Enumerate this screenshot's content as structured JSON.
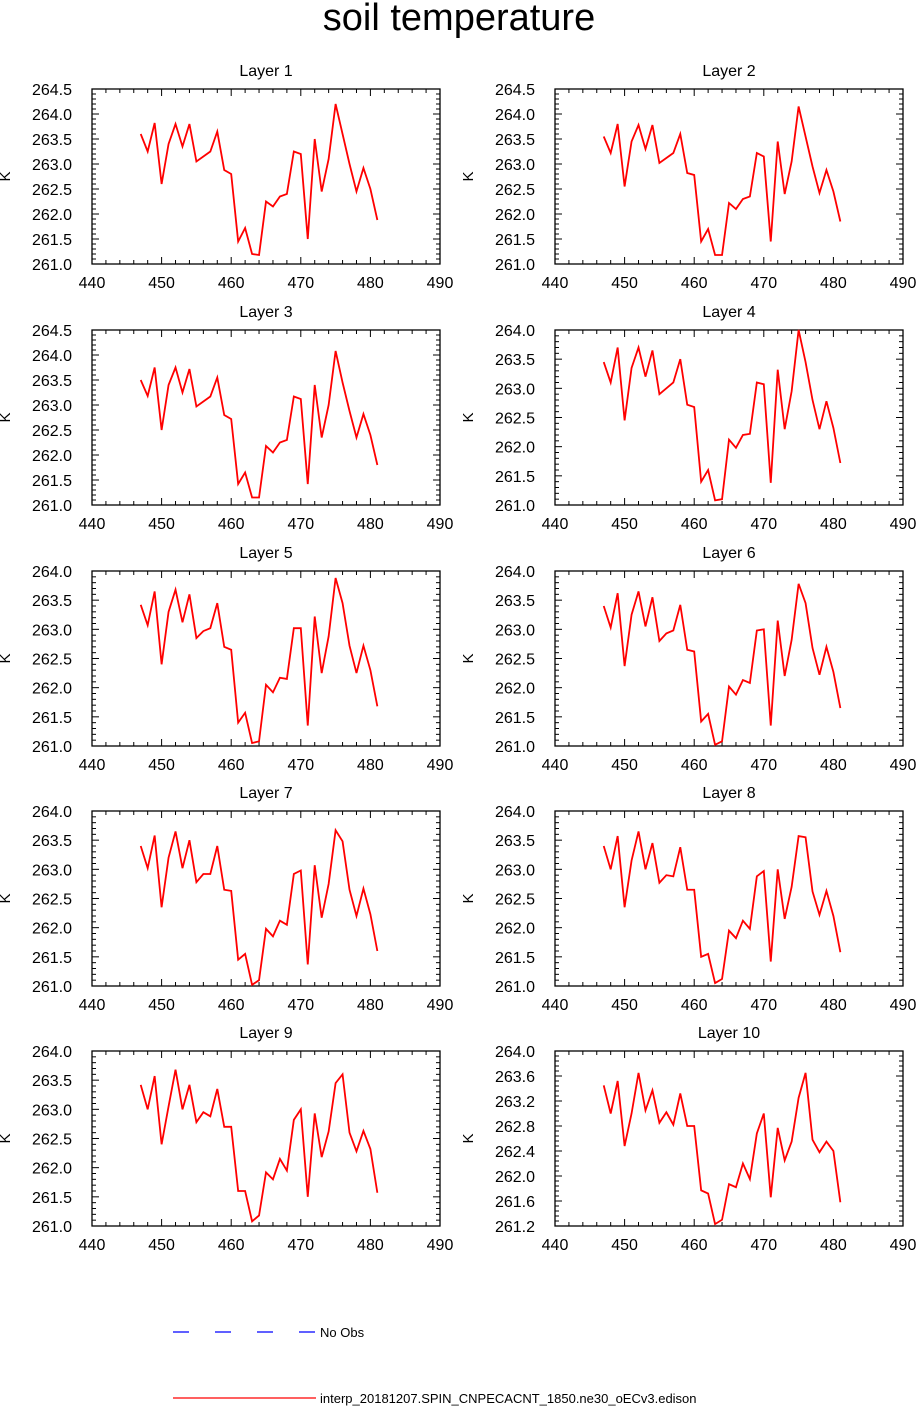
{
  "chart_data": {
    "type": "line",
    "title": "soil temperature",
    "xlim": [
      440,
      490
    ],
    "x_ticks": [
      440,
      450,
      460,
      470,
      480,
      490
    ],
    "x": [
      447,
      448,
      449,
      450,
      451,
      452,
      453,
      454,
      455,
      456,
      457,
      458,
      459,
      460,
      461,
      462,
      463,
      464,
      465,
      466,
      467,
      468,
      469,
      470,
      471,
      472,
      473,
      474,
      475,
      476,
      477,
      478,
      479,
      480,
      481
    ],
    "panels": [
      {
        "title": "Layer 1",
        "ylabel": "K",
        "ylim": [
          261.0,
          264.5
        ],
        "y_ticks": [
          "261.0",
          "261.5",
          "262.0",
          "262.5",
          "263.0",
          "263.5",
          "264.0",
          "264.5"
        ],
        "values": [
          263.6,
          263.25,
          263.82,
          262.6,
          263.4,
          263.8,
          263.35,
          263.8,
          263.05,
          263.15,
          263.25,
          263.65,
          262.88,
          262.8,
          261.45,
          261.72,
          261.2,
          261.18,
          262.25,
          262.15,
          262.35,
          262.4,
          263.25,
          263.2,
          261.5,
          263.5,
          262.45,
          263.1,
          264.2,
          263.6,
          263.0,
          262.45,
          262.92,
          262.5,
          261.88
        ]
      },
      {
        "title": "Layer 2",
        "ylabel": "K",
        "ylim": [
          261.0,
          264.5
        ],
        "y_ticks": [
          "261.0",
          "261.5",
          "262.0",
          "262.5",
          "263.0",
          "263.5",
          "264.0",
          "264.5"
        ],
        "values": [
          263.55,
          263.22,
          263.8,
          262.55,
          263.45,
          263.78,
          263.3,
          263.78,
          263.02,
          263.12,
          263.22,
          263.6,
          262.82,
          262.78,
          261.45,
          261.7,
          261.18,
          261.18,
          262.22,
          262.1,
          262.3,
          262.35,
          263.22,
          263.15,
          261.45,
          263.45,
          262.4,
          263.05,
          264.15,
          263.55,
          262.95,
          262.42,
          262.88,
          262.45,
          261.85
        ]
      },
      {
        "title": "Layer 3",
        "ylabel": "K",
        "ylim": [
          261.0,
          264.5
        ],
        "y_ticks": [
          "261.0",
          "261.5",
          "262.0",
          "262.5",
          "263.0",
          "263.5",
          "264.0",
          "264.5"
        ],
        "values": [
          263.5,
          263.18,
          263.75,
          262.5,
          263.4,
          263.75,
          263.25,
          263.72,
          262.97,
          263.07,
          263.17,
          263.55,
          262.8,
          262.72,
          261.42,
          261.65,
          261.15,
          261.15,
          262.18,
          262.05,
          262.25,
          262.3,
          263.17,
          263.12,
          261.42,
          263.4,
          262.35,
          263.0,
          264.08,
          263.45,
          262.88,
          262.35,
          262.82,
          262.4,
          261.8
        ]
      },
      {
        "title": "Layer 4",
        "ylabel": "K",
        "ylim": [
          261.0,
          264.0
        ],
        "y_ticks": [
          "261.0",
          "261.5",
          "262.0",
          "262.5",
          "263.0",
          "263.5",
          "264.0"
        ],
        "values": [
          263.45,
          263.1,
          263.7,
          262.45,
          263.35,
          263.7,
          263.2,
          263.65,
          262.9,
          263.0,
          263.1,
          263.5,
          262.72,
          262.68,
          261.4,
          261.6,
          261.08,
          261.1,
          262.12,
          261.98,
          262.2,
          262.22,
          263.1,
          263.07,
          261.38,
          263.32,
          262.3,
          262.95,
          264.0,
          263.45,
          262.8,
          262.3,
          262.78,
          262.32,
          261.72
        ]
      },
      {
        "title": "Layer 5",
        "ylabel": "K",
        "ylim": [
          261.0,
          264.0
        ],
        "y_ticks": [
          "261.0",
          "261.5",
          "262.0",
          "262.5",
          "263.0",
          "263.5",
          "264.0"
        ],
        "values": [
          263.42,
          263.07,
          263.65,
          262.4,
          263.3,
          263.68,
          263.12,
          263.6,
          262.85,
          262.97,
          263.02,
          263.45,
          262.7,
          262.65,
          261.4,
          261.57,
          261.05,
          261.08,
          262.05,
          261.92,
          262.17,
          262.15,
          263.02,
          263.02,
          261.35,
          263.22,
          262.25,
          262.88,
          263.88,
          263.45,
          262.72,
          262.25,
          262.72,
          262.3,
          261.68
        ]
      },
      {
        "title": "Layer 6",
        "ylabel": "K",
        "ylim": [
          261.0,
          264.0
        ],
        "y_ticks": [
          "261.0",
          "261.5",
          "262.0",
          "262.5",
          "263.0",
          "263.5",
          "264.0"
        ],
        "values": [
          263.4,
          263.03,
          263.62,
          262.37,
          263.25,
          263.65,
          263.05,
          263.55,
          262.8,
          262.93,
          262.98,
          263.42,
          262.65,
          262.62,
          261.42,
          261.55,
          261.02,
          261.08,
          262.02,
          261.88,
          262.13,
          262.08,
          262.98,
          263.0,
          261.35,
          263.15,
          262.2,
          262.82,
          263.78,
          263.45,
          262.68,
          262.22,
          262.7,
          262.27,
          261.65
        ]
      },
      {
        "title": "Layer 7",
        "ylabel": "K",
        "ylim": [
          261.0,
          264.0
        ],
        "y_ticks": [
          "261.0",
          "261.5",
          "262.0",
          "262.5",
          "263.0",
          "263.5",
          "264.0"
        ],
        "values": [
          263.4,
          263.02,
          263.58,
          262.35,
          263.2,
          263.65,
          263.02,
          263.5,
          262.78,
          262.92,
          262.92,
          263.4,
          262.65,
          262.63,
          261.45,
          261.55,
          261.02,
          261.1,
          261.98,
          261.85,
          262.12,
          262.05,
          262.92,
          262.98,
          261.37,
          263.07,
          262.17,
          262.75,
          263.67,
          263.48,
          262.65,
          262.2,
          262.67,
          262.23,
          261.6
        ]
      },
      {
        "title": "Layer 8",
        "ylabel": "K",
        "ylim": [
          261.0,
          264.0
        ],
        "y_ticks": [
          "261.0",
          "261.5",
          "262.0",
          "262.5",
          "263.0",
          "263.5",
          "264.0"
        ],
        "values": [
          263.4,
          263.0,
          263.57,
          262.35,
          263.15,
          263.65,
          263.0,
          263.45,
          262.77,
          262.9,
          262.88,
          263.38,
          262.65,
          262.65,
          261.5,
          261.55,
          261.05,
          261.12,
          261.95,
          261.82,
          262.12,
          261.98,
          262.88,
          262.97,
          261.42,
          263.0,
          262.15,
          262.7,
          263.57,
          263.55,
          262.62,
          262.22,
          262.63,
          262.2,
          261.58
        ]
      },
      {
        "title": "Layer 9",
        "ylabel": "K",
        "ylim": [
          261.0,
          264.0
        ],
        "y_ticks": [
          "261.0",
          "261.5",
          "262.0",
          "262.5",
          "263.0",
          "263.5",
          "264.0"
        ],
        "values": [
          263.42,
          263.0,
          263.57,
          262.4,
          263.05,
          263.68,
          263.0,
          263.42,
          262.78,
          262.95,
          262.88,
          263.35,
          262.7,
          262.7,
          261.6,
          261.6,
          261.08,
          261.18,
          261.92,
          261.8,
          262.15,
          261.95,
          262.82,
          263.0,
          261.5,
          262.93,
          262.18,
          262.62,
          263.45,
          263.6,
          262.6,
          262.28,
          262.63,
          262.32,
          261.57
        ]
      },
      {
        "title": "Layer 10",
        "ylabel": "K",
        "ylim": [
          261.2,
          264.0
        ],
        "y_ticks": [
          "261.2",
          "261.6",
          "262.0",
          "262.4",
          "262.8",
          "263.2",
          "263.6",
          "264.0"
        ],
        "values": [
          263.45,
          263.0,
          263.52,
          262.48,
          263.0,
          263.65,
          263.05,
          263.37,
          262.85,
          263.02,
          262.82,
          263.32,
          262.8,
          262.8,
          261.77,
          261.72,
          261.23,
          261.3,
          261.87,
          261.82,
          262.2,
          261.95,
          262.68,
          263.0,
          261.66,
          262.77,
          262.25,
          262.55,
          263.25,
          263.65,
          262.58,
          262.38,
          262.55,
          262.4,
          261.58
        ]
      }
    ],
    "legend": [
      {
        "label": "No Obs",
        "color": "#0000ff",
        "style": "dashed"
      },
      {
        "label": "interp_20181207.SPIN_CNPECACNT_1850.ne30_oECv3.edison",
        "color": "#ff0000",
        "style": "solid"
      }
    ],
    "colors": {
      "series": "#ff0000",
      "obs": "#0000ff",
      "axis": "#000000"
    }
  }
}
